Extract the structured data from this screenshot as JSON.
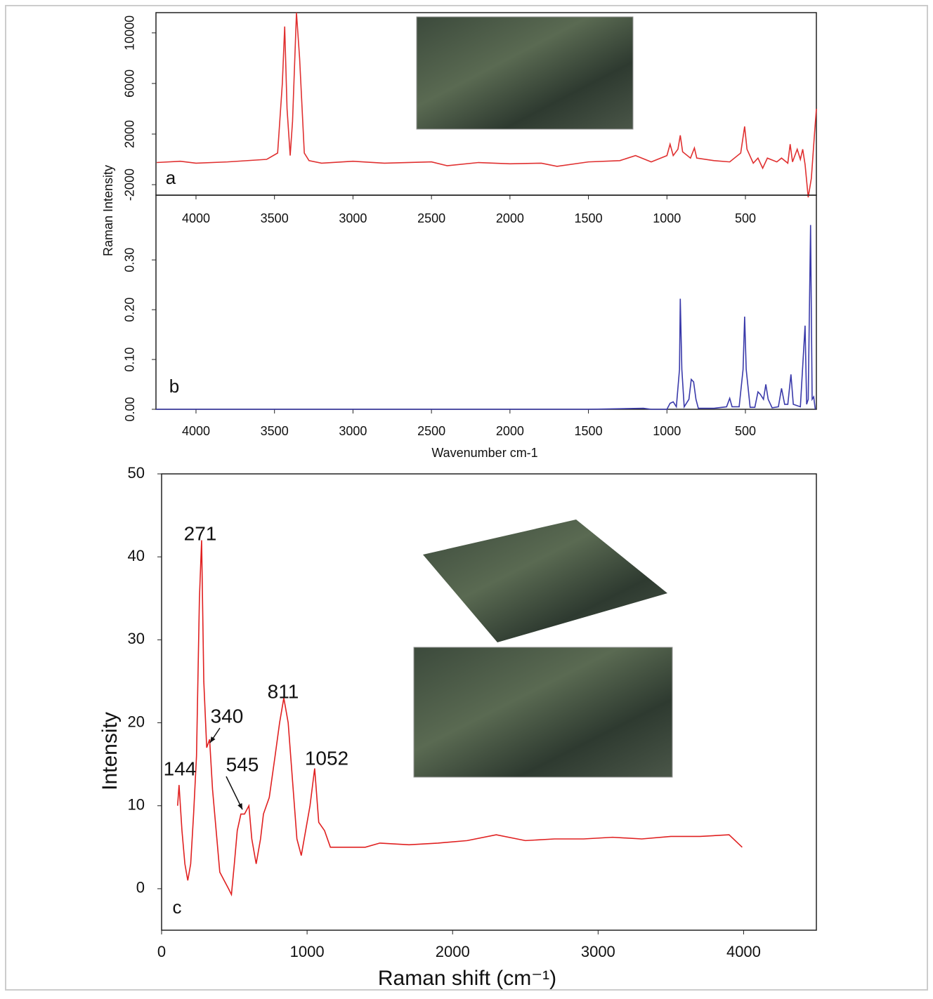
{
  "chart_data": [
    {
      "type": "line",
      "panel_label": "a",
      "ylabel": "Raman Intensity",
      "xlim": [
        4255,
        48
      ],
      "xticks": [
        4000,
        3500,
        3000,
        2500,
        2000,
        1500,
        1000,
        500
      ],
      "ylim": [
        -2830,
        11600
      ],
      "yticks": [
        -2000,
        2000,
        6000,
        10000
      ],
      "series": [
        {
          "color": "#e03030",
          "x": [
            4250,
            4100,
            4000,
            3800,
            3550,
            3480,
            3450,
            3435,
            3420,
            3400,
            3385,
            3360,
            3340,
            3310,
            3280,
            3200,
            3000,
            2800,
            2500,
            2400,
            2200,
            2000,
            1800,
            1700,
            1500,
            1300,
            1200,
            1100,
            1000,
            980,
            960,
            930,
            915,
            900,
            850,
            825,
            810,
            700,
            600,
            530,
            505,
            490,
            450,
            420,
            390,
            360,
            300,
            270,
            230,
            215,
            200,
            170,
            150,
            135,
            120,
            100,
            80,
            60,
            48
          ],
          "values": [
            -250,
            -150,
            -300,
            -200,
            0,
            500,
            6000,
            10500,
            4000,
            300,
            3000,
            11600,
            8000,
            500,
            -100,
            -300,
            -150,
            -300,
            -200,
            -500,
            -250,
            -350,
            -300,
            -550,
            -200,
            -100,
            300,
            -200,
            300,
            1200,
            300,
            800,
            1900,
            600,
            100,
            900,
            100,
            -100,
            -200,
            500,
            2600,
            800,
            -300,
            100,
            -700,
            100,
            -200,
            100,
            -300,
            1200,
            -200,
            800,
            0,
            800,
            -400,
            -3000,
            -1500,
            2000,
            4000
          ]
        }
      ]
    },
    {
      "type": "line",
      "panel_label": "b",
      "xlabel": "Wavenumber cm-1",
      "xlim": [
        4255,
        48
      ],
      "xticks": [
        4000,
        3500,
        3000,
        2500,
        2000,
        1500,
        1000,
        500
      ],
      "ylim": [
        0,
        0.43
      ],
      "yticks": [
        {
          "value": 0,
          "label": "0.00"
        },
        {
          "value": 0.1,
          "label": "0.10"
        },
        {
          "value": 0.2,
          "label": "0.20"
        },
        {
          "value": 0.3,
          "label": "0.30"
        }
      ],
      "series": [
        {
          "color": "#3a3aaa",
          "x": [
            4255,
            1500,
            1150,
            1100,
            1000,
            980,
            960,
            940,
            920,
            915,
            905,
            890,
            860,
            845,
            830,
            815,
            800,
            700,
            620,
            600,
            585,
            540,
            515,
            505,
            495,
            470,
            440,
            420,
            405,
            385,
            370,
            355,
            330,
            290,
            270,
            250,
            230,
            210,
            195,
            150,
            120,
            110,
            100,
            85,
            75,
            65,
            55
          ],
          "values": [
            0,
            0,
            0.002,
            0,
            0,
            0.012,
            0.015,
            0.005,
            0.08,
            0.222,
            0.08,
            0.005,
            0.02,
            0.06,
            0.055,
            0.02,
            0.002,
            0.002,
            0.005,
            0.022,
            0.005,
            0.005,
            0.08,
            0.186,
            0.08,
            0.004,
            0.004,
            0.035,
            0.03,
            0.02,
            0.05,
            0.02,
            0.003,
            0.005,
            0.042,
            0.01,
            0.01,
            0.07,
            0.01,
            0.005,
            0.168,
            0.01,
            0.02,
            0.37,
            0.02,
            0.025,
            0
          ]
        }
      ]
    },
    {
      "type": "line",
      "panel_label": "c",
      "xlabel": "Raman shift (cm⁻¹)",
      "ylabel": "Intensity",
      "xlim": [
        0,
        4500
      ],
      "xticks": [
        0,
        1000,
        2000,
        3000,
        4000
      ],
      "ylim": [
        -5,
        50
      ],
      "yticks": [
        0,
        10,
        20,
        30,
        40,
        50
      ],
      "annotations": [
        "271",
        "340",
        "144",
        "545",
        "811",
        "1052"
      ],
      "series": [
        {
          "color": "#e02020",
          "x": [
            110,
            120,
            140,
            160,
            180,
            200,
            220,
            240,
            260,
            275,
            290,
            310,
            330,
            350,
            380,
            400,
            430,
            460,
            480,
            500,
            520,
            545,
            570,
            600,
            620,
            650,
            680,
            700,
            740,
            780,
            811,
            840,
            870,
            900,
            930,
            960,
            990,
            1020,
            1052,
            1080,
            1120,
            1160,
            1300,
            1400,
            1500,
            1700,
            1900,
            2100,
            2300,
            2500,
            2700,
            2900,
            3100,
            3300,
            3500,
            3700,
            3900,
            3990
          ],
          "values": [
            10,
            12.5,
            7,
            3,
            1,
            3,
            9,
            16,
            35,
            42,
            25,
            17,
            18,
            12,
            6,
            2,
            1,
            0,
            -0.7,
            3,
            7,
            9,
            9,
            10,
            6,
            3,
            6,
            9,
            11,
            16,
            20,
            23,
            20,
            13,
            6,
            4,
            7,
            10,
            14.5,
            8,
            7,
            5,
            5,
            5,
            5.5,
            5.3,
            5.5,
            5.8,
            6.5,
            5.8,
            6,
            6,
            6.2,
            6,
            6.3,
            6.3,
            6.5,
            5
          ]
        }
      ]
    }
  ]
}
